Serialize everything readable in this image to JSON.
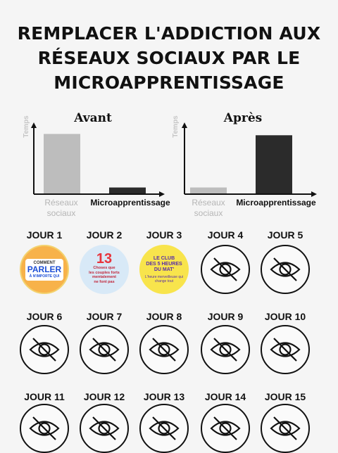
{
  "title_lines": [
    "REMPLACER L'ADDICTION AUX",
    "RÉSEAUX SOCIAUX PAR LE",
    "MICROAPPRENTISSAGE"
  ],
  "chart_data": [
    {
      "type": "bar",
      "title": "Avant",
      "ylabel": "Temps",
      "categories": [
        "Réseaux\nsociaux",
        "Microapprentissage"
      ],
      "values": [
        90,
        9
      ],
      "ylim": [
        0,
        100
      ],
      "colors": [
        "#bdbdbd",
        "#2b2b2b"
      ]
    },
    {
      "type": "bar",
      "title": "Après",
      "ylabel": "Temps",
      "categories": [
        "Réseaux\nsociaux",
        "Microapprentissage"
      ],
      "values": [
        9,
        88
      ],
      "ylim": [
        0,
        100
      ],
      "colors": [
        "#bdbdbd",
        "#2b2b2b"
      ]
    }
  ],
  "days": [
    {
      "label": "JOUR 1",
      "state": "book",
      "book": {
        "top": "COMMENT",
        "main": "PARLER",
        "sub": "À N'IMPORTE QUI"
      }
    },
    {
      "label": "JOUR 2",
      "state": "book",
      "book": {
        "num": "13",
        "lines": [
          "Choses que",
          "les couples forts",
          "mentalement",
          "ne font pas"
        ]
      }
    },
    {
      "label": "JOUR 3",
      "state": "book",
      "book": {
        "lines": [
          "LE CLUB",
          "DES 5 HEURES",
          "DU MAT'"
        ],
        "sub": "L'heure merveilleuse qui change tout"
      }
    },
    {
      "label": "JOUR 4",
      "state": "locked",
      "icon": "eye-slash-icon"
    },
    {
      "label": "JOUR 5",
      "state": "locked",
      "icon": "eye-slash-icon"
    },
    {
      "label": "JOUR 6",
      "state": "locked",
      "icon": "eye-slash-icon"
    },
    {
      "label": "JOUR 7",
      "state": "locked",
      "icon": "eye-slash-icon"
    },
    {
      "label": "JOUR 8",
      "state": "locked",
      "icon": "eye-slash-icon"
    },
    {
      "label": "JOUR 9",
      "state": "locked",
      "icon": "eye-slash-icon"
    },
    {
      "label": "JOUR 10",
      "state": "locked",
      "icon": "eye-slash-icon"
    },
    {
      "label": "JOUR 11",
      "state": "locked",
      "icon": "eye-slash-icon"
    },
    {
      "label": "JOUR 12",
      "state": "locked",
      "icon": "eye-slash-icon"
    },
    {
      "label": "JOUR 13",
      "state": "locked",
      "icon": "eye-slash-icon"
    },
    {
      "label": "JOUR 14",
      "state": "locked",
      "icon": "eye-slash-icon"
    },
    {
      "label": "JOUR 15",
      "state": "locked",
      "icon": "eye-slash-icon"
    }
  ]
}
